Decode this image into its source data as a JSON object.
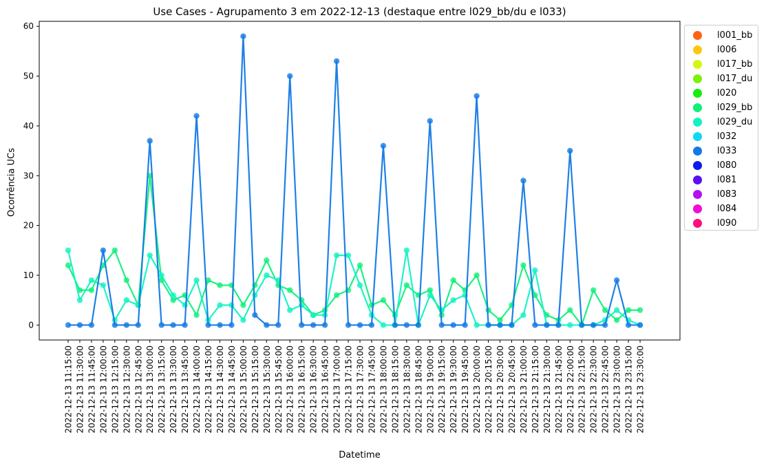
{
  "chart_data": {
    "type": "line",
    "title": "Use Cases - Agrupamento 3 em 2022-12-13 (destaque entre l029_bb/du e l033)",
    "xlabel": "Datetime",
    "ylabel": "Ocorrência UCs",
    "ylim": [
      -3,
      61
    ],
    "yticks": [
      0,
      10,
      20,
      30,
      40,
      50,
      60
    ],
    "grid": false,
    "legend_position": "outside-right",
    "categories": [
      "2022-12-13 11:15:00",
      "2022-12-13 11:30:00",
      "2022-12-13 11:45:00",
      "2022-12-13 12:00:00",
      "2022-12-13 12:15:00",
      "2022-12-13 12:30:00",
      "2022-12-13 12:45:00",
      "2022-12-13 13:00:00",
      "2022-12-13 13:15:00",
      "2022-12-13 13:30:00",
      "2022-12-13 13:45:00",
      "2022-12-13 14:00:00",
      "2022-12-13 14:15:00",
      "2022-12-13 14:30:00",
      "2022-12-13 14:45:00",
      "2022-12-13 15:00:00",
      "2022-12-13 15:15:00",
      "2022-12-13 15:30:00",
      "2022-12-13 15:45:00",
      "2022-12-13 16:00:00",
      "2022-12-13 16:15:00",
      "2022-12-13 16:30:00",
      "2022-12-13 16:45:00",
      "2022-12-13 17:00:00",
      "2022-12-13 17:15:00",
      "2022-12-13 17:30:00",
      "2022-12-13 17:45:00",
      "2022-12-13 18:00:00",
      "2022-12-13 18:15:00",
      "2022-12-13 18:30:00",
      "2022-12-13 18:45:00",
      "2022-12-13 19:00:00",
      "2022-12-13 19:15:00",
      "2022-12-13 19:30:00",
      "2022-12-13 19:45:00",
      "2022-12-13 20:00:00",
      "2022-12-13 20:15:00",
      "2022-12-13 20:30:00",
      "2022-12-13 20:45:00",
      "2022-12-13 21:00:00",
      "2022-12-13 21:15:00",
      "2022-12-13 21:30:00",
      "2022-12-13 21:45:00",
      "2022-12-13 22:00:00",
      "2022-12-13 22:15:00",
      "2022-12-13 22:30:00",
      "2022-12-13 22:45:00",
      "2022-12-13 23:00:00",
      "2022-12-13 23:15:00",
      "2022-12-13 23:30:00"
    ],
    "series": [
      {
        "name": "l029_bb",
        "color": "#10f07a",
        "values": [
          12,
          7,
          7,
          12,
          15,
          9,
          4,
          30,
          9,
          5,
          6,
          2,
          9,
          8,
          8,
          4,
          8,
          13,
          8,
          7,
          5,
          2,
          3,
          6,
          7,
          12,
          4,
          5,
          2,
          8,
          6,
          7,
          2,
          9,
          7,
          10,
          3,
          1,
          4,
          12,
          6,
          2,
          1,
          3,
          0,
          7,
          3,
          1,
          3,
          3
        ]
      },
      {
        "name": "l029_du",
        "color": "#12f2c2",
        "values": [
          15,
          5,
          9,
          8,
          1,
          5,
          4,
          14,
          10,
          6,
          4,
          9,
          1,
          4,
          4,
          1,
          6,
          10,
          9,
          3,
          4,
          2,
          2,
          14,
          14,
          8,
          2,
          0,
          0,
          15,
          0,
          6,
          3,
          5,
          6,
          0,
          0,
          0,
          0,
          2,
          11,
          0,
          0,
          0,
          0,
          0,
          1,
          3,
          1,
          0
        ]
      },
      {
        "name": "l033",
        "color": "#1178e6",
        "values": [
          0,
          0,
          0,
          15,
          0,
          0,
          0,
          37,
          0,
          0,
          0,
          42,
          0,
          0,
          0,
          58,
          2,
          0,
          0,
          50,
          0,
          0,
          0,
          53,
          0,
          0,
          0,
          36,
          0,
          0,
          0,
          41,
          0,
          0,
          0,
          46,
          0,
          0,
          0,
          29,
          0,
          0,
          0,
          35,
          0,
          0,
          0,
          9,
          0,
          0
        ]
      }
    ],
    "legend": [
      {
        "label": "l001_bb",
        "color": "#ff6312"
      },
      {
        "label": "l006",
        "color": "#ffc80e"
      },
      {
        "label": "l017_bb",
        "color": "#d6f50f"
      },
      {
        "label": "l017_du",
        "color": "#7cf20d"
      },
      {
        "label": "l020",
        "color": "#17ee0c"
      },
      {
        "label": "l029_bb",
        "color": "#10f07a"
      },
      {
        "label": "l029_du",
        "color": "#12f2c2"
      },
      {
        "label": "l032",
        "color": "#10d8f2"
      },
      {
        "label": "l033",
        "color": "#1178e6"
      },
      {
        "label": "l080",
        "color": "#0d1aee"
      },
      {
        "label": "l081",
        "color": "#5a10f0"
      },
      {
        "label": "l083",
        "color": "#b50ff0"
      },
      {
        "label": "l084",
        "color": "#f10dd8"
      },
      {
        "label": "l090",
        "color": "#ff0f7b"
      }
    ]
  }
}
